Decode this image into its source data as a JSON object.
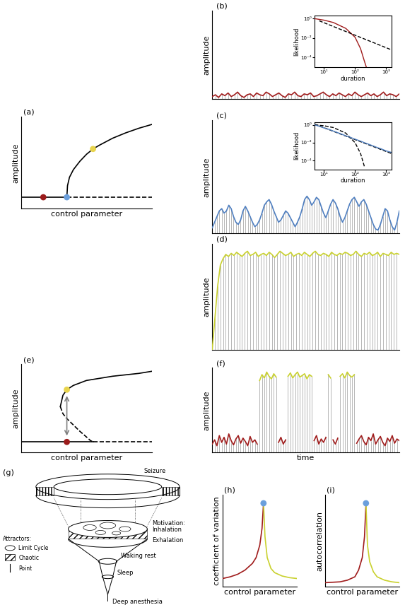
{
  "chart_data": [
    {
      "panel": "(a)",
      "type": "line",
      "x_label": "control parameter",
      "y_label": "amplitude",
      "xlim": [
        0,
        1
      ],
      "ylim": [
        -0.15,
        1.05
      ],
      "tick_labels": false,
      "series": [
        {
          "x": [
            0,
            0.35
          ],
          "values": [
            0,
            0
          ],
          "color": "#000000",
          "line_style": "solid"
        },
        {
          "x": [
            0.35,
            1
          ],
          "values": [
            0,
            0
          ],
          "color": "#000000",
          "line_style": "dashed"
        },
        {
          "x": [
            0.35,
            0.355,
            0.37,
            0.4,
            0.45,
            0.5,
            0.55,
            0.6,
            0.7,
            0.8,
            0.9,
            1.0
          ],
          "values": [
            0,
            0.15,
            0.26,
            0.36,
            0.47,
            0.56,
            0.63,
            0.68,
            0.77,
            0.84,
            0.9,
            0.95
          ],
          "color": "#000000",
          "line_style": "solid"
        },
        {
          "type": "scatter",
          "marker": "circle",
          "x": [
            0.17,
            0.35,
            0.55
          ],
          "values": [
            0,
            0,
            0.63
          ],
          "colors": [
            "#9b1b1b",
            "#6b9fdc",
            "#e8d44d"
          ]
        }
      ]
    },
    {
      "panel": "(b)",
      "type": "line",
      "y_label": "amplitude",
      "xlim": [
        0,
        59
      ],
      "ylim": [
        0,
        1
      ],
      "tick_labels": false,
      "series": [
        {
          "type": "envelope",
          "color": "#a01c1c",
          "line_style": "solid",
          "values": [
            0.03,
            0.05,
            0.02,
            0.06,
            0.04,
            0.07,
            0.03,
            0.05,
            0.08,
            0.04,
            0.02,
            0.05,
            0.06,
            0.03,
            0.07,
            0.05,
            0.04,
            0.08,
            0.06,
            0.03,
            0.05,
            0.07,
            0.04,
            0.02,
            0.06,
            0.05,
            0.08,
            0.04,
            0.03,
            0.06,
            0.05,
            0.07,
            0.03,
            0.04,
            0.06,
            0.08,
            0.05,
            0.03,
            0.06,
            0.04,
            0.07,
            0.05,
            0.03,
            0.06,
            0.04,
            0.08,
            0.05,
            0.03,
            0.05,
            0.07,
            0.04,
            0.06,
            0.03,
            0.05,
            0.08,
            0.04,
            0.06,
            0.05,
            0.03,
            0.06
          ]
        }
      ],
      "inset": {
        "type": "line",
        "log": true,
        "x_label": "duration",
        "y_label": "likelihood",
        "xlim": [
          5,
          1500
        ],
        "ylim": [
          1e-05,
          2
        ],
        "xticks": [
          {
            "value": 10,
            "label": "10¹"
          },
          {
            "value": 100,
            "label": "10²"
          },
          {
            "value": 1000,
            "label": "10³"
          }
        ],
        "yticks": [
          {
            "value": 1,
            "label": "10⁰"
          },
          {
            "value": 0.01,
            "label": "10⁻²"
          },
          {
            "value": 0.0001,
            "label": "10⁻⁴"
          }
        ],
        "series": [
          {
            "x": [
              5,
              10,
              20,
              50,
              100,
              150,
              200,
              230
            ],
            "values": [
              1,
              0.7,
              0.4,
              0.1,
              0.012,
              0.0008,
              4e-05,
              1e-05
            ],
            "color": "#a01c1c",
            "line_style": "solid"
          },
          {
            "x": [
              7,
              1500
            ],
            "values": [
              0.6,
              0.0006
            ],
            "color": "#000000",
            "line_style": "dashed"
          }
        ]
      }
    },
    {
      "panel": "(c)",
      "type": "line",
      "y_label": "amplitude",
      "xlim": [
        0,
        79
      ],
      "ylim": [
        0,
        1
      ],
      "tick_labels": false,
      "series": [
        {
          "type": "envelope",
          "color": "#4f7fc0",
          "line_style": "solid",
          "values": [
            0.05,
            0.1,
            0.15,
            0.2,
            0.22,
            0.18,
            0.2,
            0.25,
            0.22,
            0.15,
            0.1,
            0.08,
            0.12,
            0.2,
            0.24,
            0.2,
            0.15,
            0.1,
            0.06,
            0.08,
            0.12,
            0.18,
            0.25,
            0.28,
            0.3,
            0.26,
            0.2,
            0.15,
            0.1,
            0.12,
            0.16,
            0.2,
            0.18,
            0.14,
            0.1,
            0.06,
            0.1,
            0.15,
            0.22,
            0.3,
            0.33,
            0.3,
            0.25,
            0.28,
            0.32,
            0.3,
            0.24,
            0.18,
            0.14,
            0.2,
            0.26,
            0.3,
            0.27,
            0.22,
            0.15,
            0.1,
            0.14,
            0.2,
            0.26,
            0.3,
            0.32,
            0.28,
            0.24,
            0.28,
            0.3,
            0.26,
            0.2,
            0.14,
            0.08,
            0.04,
            0.03,
            0.08,
            0.15,
            0.22,
            0.2,
            0.12,
            0.06,
            0.03,
            0.1,
            0.2
          ]
        }
      ],
      "inset": {
        "type": "line",
        "log": true,
        "x_label": "duration",
        "y_label": "likelihood",
        "xlim": [
          5,
          1500
        ],
        "ylim": [
          1e-05,
          2
        ],
        "xticks": [
          {
            "value": 10,
            "label": "10¹"
          },
          {
            "value": 100,
            "label": "10²"
          },
          {
            "value": 1000,
            "label": "10³"
          }
        ],
        "yticks": [
          {
            "value": 1,
            "label": "10⁰"
          },
          {
            "value": 0.01,
            "label": "10⁻²"
          },
          {
            "value": 0.0001,
            "label": "10⁻⁴"
          }
        ],
        "series": [
          {
            "x": [
              5,
              10,
              20,
              50,
              100,
              150,
              200
            ],
            "values": [
              1,
              0.8,
              0.5,
              0.12,
              0.01,
              0.0006,
              2e-05
            ],
            "color": "#000000",
            "line_style": "dashed"
          },
          {
            "x": [
              5,
              1500
            ],
            "values": [
              1.2,
              0.0006
            ],
            "color": "#000000",
            "line_style": "dashed"
          },
          {
            "x": [
              5,
              7,
              10,
              15,
              20,
              30,
              50,
              70,
              100,
              150,
              200,
              300,
              500,
              700,
              1000,
              1500
            ],
            "values": [
              1,
              0.7,
              0.45,
              0.3,
              0.2,
              0.12,
              0.06,
              0.04,
              0.025,
              0.015,
              0.01,
              0.006,
              0.003,
              0.002,
              0.0012,
              0.0008
            ],
            "color": "#4f7fc0",
            "line_style": "solid"
          }
        ]
      }
    },
    {
      "panel": "(d)",
      "type": "line",
      "y_label": "amplitude",
      "xlim": [
        0,
        69
      ],
      "ylim": [
        0,
        1
      ],
      "tick_labels": false,
      "series": [
        {
          "type": "envelope",
          "color": "#c9d12e",
          "line_style": "solid",
          "values": [
            0.0,
            0.3,
            0.6,
            0.8,
            0.86,
            0.9,
            0.88,
            0.91,
            0.89,
            0.92,
            0.9,
            0.88,
            0.91,
            0.93,
            0.89,
            0.9,
            0.92,
            0.88,
            0.9,
            0.91,
            0.89,
            0.92,
            0.9,
            0.87,
            0.9,
            0.93,
            0.91,
            0.89,
            0.9,
            0.92,
            0.88,
            0.9,
            0.91,
            0.89,
            0.92,
            0.9,
            0.88,
            0.91,
            0.93,
            0.9,
            0.89,
            0.91,
            0.9,
            0.88,
            0.92,
            0.9,
            0.89,
            0.91,
            0.9,
            0.92,
            0.91,
            0.89,
            0.9,
            0.93,
            0.9,
            0.88,
            0.91,
            0.9,
            0.92,
            0.89,
            0.9,
            0.92,
            0.88,
            0.91,
            0.9,
            0.89,
            0.92,
            0.9,
            0.91,
            0.9
          ]
        }
      ]
    },
    {
      "panel": "(e)",
      "type": "line",
      "x_label": "control parameter",
      "y_label": "amplitude",
      "xlim": [
        0,
        1
      ],
      "ylim": [
        -0.15,
        1.1
      ],
      "tick_labels": false,
      "series": [
        {
          "x": [
            0,
            0.55
          ],
          "values": [
            0,
            0
          ],
          "color": "#000000",
          "line_style": "solid"
        },
        {
          "x": [
            0.55,
            1
          ],
          "values": [
            0,
            0
          ],
          "color": "#000000",
          "line_style": "dashed"
        },
        {
          "x": [
            0.3,
            0.32,
            0.35,
            0.4,
            0.5,
            0.6,
            0.7,
            0.8,
            0.9,
            1.0
          ],
          "values": [
            0.5,
            0.66,
            0.74,
            0.8,
            0.87,
            0.9,
            0.93,
            0.95,
            0.97,
            1.0
          ],
          "color": "#000000",
          "line_style": "solid"
        },
        {
          "x": [
            0.3,
            0.32,
            0.35,
            0.4,
            0.45,
            0.5,
            0.53,
            0.55
          ],
          "values": [
            0.5,
            0.4,
            0.33,
            0.24,
            0.15,
            0.07,
            0.02,
            0
          ],
          "color": "#000000",
          "line_style": "dashed"
        },
        {
          "type": "scatter",
          "marker": "circle",
          "x": [
            0.35,
            0.35
          ],
          "values": [
            0,
            0.74
          ],
          "colors": [
            "#9b1b1b",
            "#e8d44d"
          ]
        }
      ]
    },
    {
      "panel": "(f)",
      "type": "line",
      "x_label": "time",
      "y_label": "amplitude",
      "xlim": [
        0,
        79
      ],
      "ylim": [
        0,
        1
      ],
      "tick_labels": false,
      "series": [
        {
          "type": "envelope",
          "color": "#a01c1c",
          "line_style": "solid",
          "values": [
            0.1,
            0.15,
            0.08,
            0.2,
            0.12,
            0.18,
            0.1,
            0.22,
            0.14,
            0.09,
            0.16,
            0.2,
            0.11,
            0.17,
            0.13,
            0.08,
            0.19,
            0.12,
            0.15,
            0.1,
            null,
            null,
            null,
            null,
            null,
            null,
            null,
            null,
            0.12,
            0.18,
            0.1,
            0.15,
            null,
            null,
            null,
            null,
            null,
            null,
            null,
            null,
            null,
            null,
            null,
            0.14,
            0.2,
            0.1,
            0.16,
            0.12,
            0.18,
            null,
            null,
            0.15,
            0.1,
            0.17,
            null,
            null,
            null,
            null,
            null,
            null,
            null,
            0.11,
            0.16,
            0.2,
            0.13,
            0.09,
            0.18,
            0.14,
            0.22,
            0.1,
            0.15,
            0.19,
            0.12,
            0.08,
            0.17,
            0.13,
            0.2,
            0.11,
            0.16,
            0.14
          ]
        },
        {
          "type": "envelope",
          "color": "#c9d12e",
          "line_style": "solid",
          "values": [
            null,
            null,
            null,
            null,
            null,
            null,
            null,
            null,
            null,
            null,
            null,
            null,
            null,
            null,
            null,
            null,
            null,
            null,
            null,
            null,
            0.85,
            0.92,
            0.88,
            0.95,
            0.9,
            0.87,
            0.93,
            0.89,
            null,
            null,
            null,
            null,
            0.9,
            0.94,
            0.88,
            0.92,
            0.95,
            0.89,
            0.91,
            0.93,
            0.87,
            0.92,
            0.9,
            null,
            null,
            null,
            null,
            null,
            null,
            0.92,
            0.88,
            null,
            null,
            null,
            0.9,
            0.93,
            0.88,
            0.95,
            0.91,
            0.89,
            0.92,
            null,
            null,
            null,
            null,
            null,
            null,
            null,
            null,
            null,
            null,
            null,
            null,
            null,
            null,
            null,
            null,
            null,
            null,
            null
          ]
        }
      ]
    },
    {
      "panel": "(h)",
      "type": "line",
      "x_label": "control parameter",
      "y_label": "coefficient of variation",
      "xlim": [
        0,
        1
      ],
      "ylim": [
        0,
        1.1
      ],
      "tick_labels": false,
      "series": [
        {
          "x": [
            0,
            0.1,
            0.2,
            0.3,
            0.4,
            0.45,
            0.5,
            0.53,
            0.55
          ],
          "values": [
            0.1,
            0.12,
            0.15,
            0.2,
            0.28,
            0.35,
            0.5,
            0.7,
            1.0
          ],
          "color": "#a01c1c",
          "line_style": "solid"
        },
        {
          "x": [
            0.55,
            0.57,
            0.6,
            0.65,
            0.7,
            0.8,
            0.9,
            1.0
          ],
          "values": [
            1.0,
            0.6,
            0.35,
            0.22,
            0.17,
            0.13,
            0.11,
            0.1
          ],
          "color": "#c9d12e",
          "line_style": "solid"
        },
        {
          "type": "scatter",
          "marker": "circle",
          "x": [
            0.55
          ],
          "values": [
            1.0
          ],
          "colors": [
            "#6b9fdc"
          ]
        }
      ]
    },
    {
      "panel": "(i)",
      "type": "line",
      "x_label": "control parameter",
      "y_label": "autocorrelation",
      "xlim": [
        0,
        1
      ],
      "ylim": [
        0,
        1.1
      ],
      "tick_labels": false,
      "series": [
        {
          "x": [
            0,
            0.2,
            0.3,
            0.4,
            0.45,
            0.5,
            0.53,
            0.55
          ],
          "values": [
            0.05,
            0.06,
            0.08,
            0.12,
            0.2,
            0.35,
            0.6,
            1.0
          ],
          "color": "#a01c1c",
          "line_style": "solid"
        },
        {
          "x": [
            0.55,
            0.57,
            0.6,
            0.65,
            0.7,
            0.8,
            0.9,
            1.0
          ],
          "values": [
            1.0,
            0.5,
            0.3,
            0.18,
            0.12,
            0.08,
            0.06,
            0.05
          ],
          "color": "#c9d12e",
          "line_style": "solid"
        },
        {
          "type": "scatter",
          "marker": "circle",
          "x": [
            0.55
          ],
          "values": [
            1.0
          ],
          "colors": [
            "#6b9fdc"
          ]
        }
      ]
    }
  ],
  "diagram": {
    "panel": "(g)",
    "labels": {
      "seizure": "Seizure",
      "motivation": "Motivation:",
      "inhalation": "Inhalation",
      "exhalation": "Exhalation",
      "waking_rest": "Waking rest",
      "sleep": "Sleep",
      "deep_anesthesia": "Deep anesthesia"
    },
    "legend": {
      "title": "Attractors:",
      "limit_cycle": "Limit Cycle",
      "chaotic": "Chaotic",
      "point": "Point"
    }
  }
}
